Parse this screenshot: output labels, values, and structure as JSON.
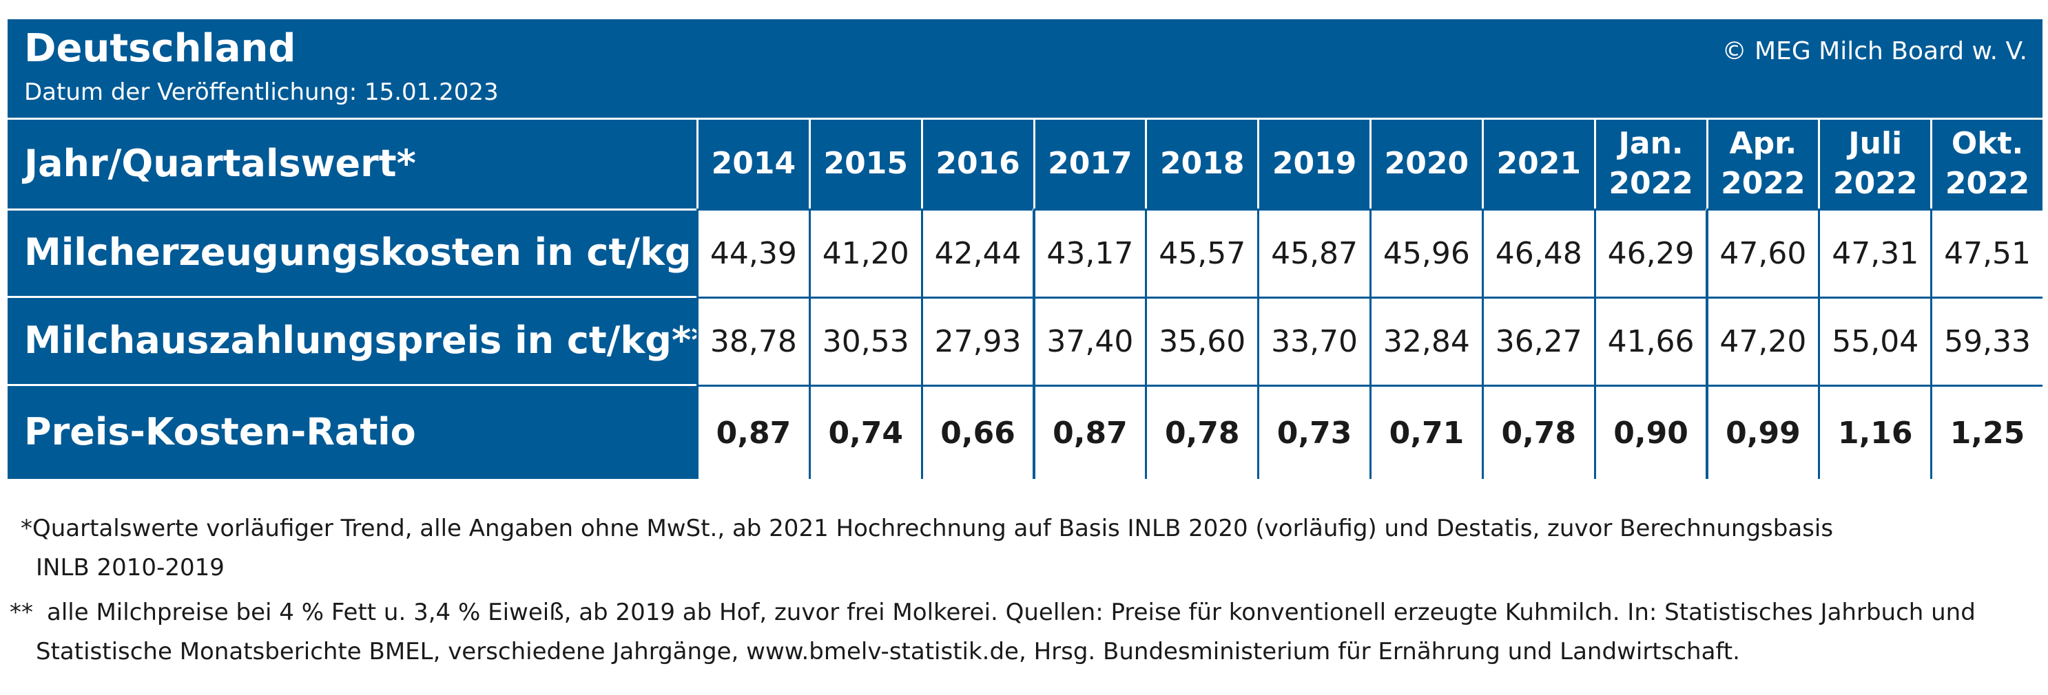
{
  "header": {
    "title": "Deutschland",
    "pubdate": "Datum der Veröffentlichung: 15.01.2023",
    "copyright": "© MEG Milch Board w. V."
  },
  "colors": {
    "brand_blue": "#005a96",
    "cell_bg": "#ffffff",
    "text": "#1a1a1a"
  },
  "chart_data": {
    "type": "table",
    "columns": [
      "2014",
      "2015",
      "2016",
      "2017",
      "2018",
      "2019",
      "2020",
      "2021",
      "Jan.\n2022",
      "Apr.\n2022",
      "Juli\n2022",
      "Okt.\n2022"
    ],
    "row_header_label": "Jahr/Quartalswert*",
    "rows": [
      {
        "label": "Milcherzeugungskosten in ct/kg",
        "values": [
          "44,39",
          "41,20",
          "42,44",
          "43,17",
          "45,57",
          "45,87",
          "45,96",
          "46,48",
          "46,29",
          "47,60",
          "47,31",
          "47,51"
        ],
        "bold": false
      },
      {
        "label": "Milchauszahlungspreis in ct/kg**",
        "values": [
          "38,78",
          "30,53",
          "27,93",
          "37,40",
          "35,60",
          "33,70",
          "32,84",
          "36,27",
          "41,66",
          "47,20",
          "55,04",
          "59,33"
        ],
        "bold": false
      },
      {
        "label": "Preis-Kosten-Ratio",
        "values": [
          "0,87",
          "0,74",
          "0,66",
          "0,87",
          "0,78",
          "0,73",
          "0,71",
          "0,78",
          "0,90",
          "0,99",
          "1,16",
          "1,25"
        ],
        "bold": true
      }
    ]
  },
  "footnotes": {
    "fn1_line1": "*Quartalswerte vorläufiger Trend, alle Angaben ohne MwSt., ab 2021 Hochrechnung auf Basis INLB 2020 (vorläufig) und Destatis, zuvor Berechnungsbasis",
    "fn1_line2": "INLB 2010-2019",
    "fn2_marker": "**",
    "fn2_line1": "alle Milchpreise bei 4 % Fett u. 3,4 % Eiweiß, ab 2019 ab Hof, zuvor frei Molkerei. Quellen: Preise für konventionell erzeugte Kuhmilch. In: Statistisches Jahrbuch und",
    "fn2_line2": "Statistische Monatsberichte BMEL, verschiedene Jahrgänge, www.bmelv-statistik.de, Hrsg. Bundesministerium für Ernährung und Landwirtschaft."
  }
}
